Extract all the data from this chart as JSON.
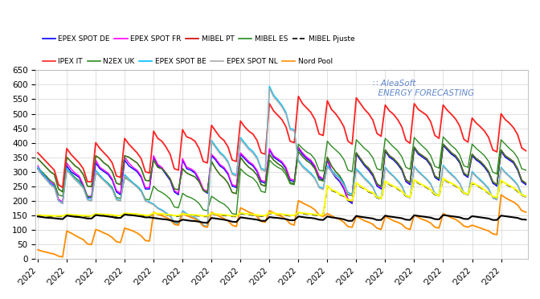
{
  "legend_row1": [
    "EPEX SPOT DE",
    "EPEX SPOT FR",
    "MIBEL PT",
    "MIBEL ES",
    "MIBEL Pjuste"
  ],
  "legend_row2": [
    "IPEX IT",
    "N2EX UK",
    "EPEX SPOT BE",
    "EPEX SPOT NL",
    "Nord Pool"
  ],
  "colors_row1": [
    "#0000FF",
    "#FF00FF",
    "#FF0000",
    "#228B22",
    "#000000"
  ],
  "colors_row2": [
    "#FF0000",
    "#228B22",
    "#00BFFF",
    "#808080",
    "#FFA500"
  ],
  "ls_row1": [
    "-",
    "-",
    "-",
    "-",
    "--"
  ],
  "ls_row2": [
    "-",
    "-",
    "-",
    "-",
    "-"
  ],
  "ylim": [
    0,
    650
  ],
  "yticks": [
    0,
    50,
    100,
    150,
    200,
    250,
    300,
    350,
    400,
    450,
    500,
    550,
    600,
    650
  ],
  "background": "#ffffff",
  "grid_color": "#c8c8c8",
  "n_points": 119,
  "x_tick_every": 7,
  "series": {
    "EPEX_SPOT_DE": [
      310,
      290,
      280,
      260,
      250,
      200,
      190,
      320,
      300,
      290,
      280,
      250,
      210,
      210,
      330,
      310,
      300,
      290,
      270,
      230,
      220,
      340,
      320,
      310,
      300,
      280,
      240,
      240,
      350,
      320,
      310,
      290,
      270,
      230,
      220,
      340,
      310,
      305,
      295,
      270,
      235,
      225,
      355,
      340,
      320,
      310,
      290,
      250,
      245,
      360,
      345,
      330,
      320,
      300,
      265,
      260,
      375,
      350,
      340,
      330,
      310,
      270,
      265,
      380,
      360,
      345,
      335,
      315,
      280,
      270,
      340,
      300,
      280,
      265,
      240,
      200,
      190,
      360,
      340,
      320,
      305,
      285,
      250,
      240,
      370,
      350,
      340,
      325,
      305,
      265,
      255,
      380,
      360,
      350,
      340,
      320,
      280,
      270,
      390,
      375,
      360,
      350,
      330,
      290,
      280,
      355,
      340,
      330,
      315,
      295,
      260,
      250,
      370,
      350,
      340,
      330,
      305,
      265,
      255
    ],
    "EPEX_SPOT_FR": [
      320,
      295,
      285,
      265,
      255,
      205,
      195,
      330,
      310,
      295,
      285,
      255,
      215,
      215,
      340,
      315,
      305,
      295,
      275,
      235,
      225,
      350,
      330,
      315,
      305,
      285,
      245,
      245,
      355,
      325,
      315,
      295,
      275,
      235,
      225,
      345,
      315,
      310,
      300,
      275,
      240,
      230,
      360,
      345,
      325,
      315,
      295,
      255,
      250,
      365,
      350,
      335,
      325,
      305,
      270,
      265,
      380,
      355,
      345,
      335,
      315,
      275,
      270,
      385,
      365,
      350,
      340,
      320,
      285,
      275,
      345,
      305,
      285,
      270,
      245,
      205,
      195,
      365,
      345,
      325,
      310,
      290,
      255,
      245,
      375,
      355,
      345,
      330,
      310,
      270,
      260,
      385,
      365,
      355,
      345,
      325,
      285,
      275,
      395,
      380,
      365,
      355,
      335,
      295,
      285,
      360,
      345,
      335,
      320,
      300,
      265,
      255,
      375,
      355,
      345,
      335,
      310,
      270,
      260
    ],
    "MIBEL_PT": [
      345,
      330,
      315,
      300,
      290,
      240,
      230,
      350,
      335,
      320,
      310,
      290,
      250,
      248,
      355,
      345,
      330,
      320,
      300,
      260,
      255,
      355,
      350,
      340,
      330,
      310,
      270,
      268,
      340,
      315,
      310,
      295,
      275,
      240,
      238,
      310,
      295,
      288,
      282,
      265,
      235,
      228,
      335,
      310,
      290,
      278,
      260,
      228,
      224,
      350,
      330,
      315,
      305,
      288,
      255,
      250,
      360,
      340,
      328,
      318,
      300,
      262,
      258,
      370,
      352,
      338,
      328,
      310,
      272,
      268,
      350,
      320,
      300,
      285,
      260,
      220,
      218,
      365,
      345,
      325,
      312,
      292,
      258,
      248,
      375,
      355,
      345,
      330,
      310,
      272,
      262,
      385,
      365,
      355,
      345,
      325,
      285,
      275,
      395,
      380,
      365,
      355,
      335,
      295,
      285,
      360,
      345,
      335,
      320,
      300,
      265,
      255,
      375,
      355,
      345,
      335,
      310,
      270,
      260
    ],
    "MIBEL_ES": [
      345,
      330,
      315,
      300,
      290,
      240,
      230,
      350,
      335,
      320,
      310,
      290,
      250,
      248,
      355,
      345,
      330,
      320,
      300,
      260,
      255,
      355,
      350,
      340,
      330,
      310,
      270,
      268,
      340,
      315,
      310,
      295,
      275,
      240,
      238,
      310,
      295,
      288,
      282,
      265,
      235,
      228,
      335,
      310,
      290,
      278,
      260,
      228,
      224,
      350,
      330,
      315,
      305,
      288,
      255,
      250,
      360,
      340,
      328,
      318,
      300,
      262,
      258,
      370,
      352,
      338,
      328,
      310,
      272,
      268,
      350,
      320,
      300,
      285,
      260,
      220,
      218,
      365,
      345,
      325,
      312,
      292,
      258,
      248,
      375,
      355,
      345,
      330,
      310,
      272,
      262,
      385,
      365,
      355,
      345,
      325,
      285,
      275,
      395,
      380,
      365,
      355,
      335,
      295,
      285,
      360,
      345,
      335,
      320,
      300,
      265,
      255,
      375,
      355,
      345,
      335,
      310,
      270,
      260
    ],
    "MIBEL_Pjuste": [
      148,
      147,
      146,
      146,
      145,
      145,
      145,
      150,
      149,
      148,
      147,
      146,
      145,
      145,
      152,
      151,
      150,
      149,
      148,
      146,
      146,
      154,
      153,
      152,
      151,
      149,
      147,
      147,
      155,
      153,
      152,
      150,
      149,
      146,
      146,
      152,
      150,
      149,
      148,
      147,
      145,
      145,
      154,
      152,
      150,
      149,
      147,
      145,
      145,
      155,
      153,
      151,
      150,
      148,
      146,
      146,
      156,
      154,
      152,
      151,
      149,
      147,
      147,
      157,
      155,
      153,
      152,
      150,
      148,
      148,
      250,
      235,
      230,
      220,
      215,
      200,
      198,
      260,
      248,
      240,
      230,
      225,
      210,
      205,
      265,
      255,
      248,
      240,
      230,
      215,
      210,
      270,
      260,
      252,
      245,
      235,
      220,
      215,
      275,
      265,
      258,
      250,
      240,
      225,
      220,
      260,
      252,
      245,
      235,
      225,
      212,
      208,
      268,
      258,
      250,
      242,
      232,
      218,
      213
    ],
    "IPEX_IT": [
      365,
      350,
      335,
      320,
      305,
      255,
      245,
      380,
      360,
      345,
      330,
      310,
      265,
      265,
      400,
      380,
      365,
      350,
      330,
      285,
      280,
      415,
      395,
      380,
      365,
      345,
      300,
      295,
      440,
      415,
      405,
      385,
      360,
      310,
      305,
      445,
      420,
      415,
      405,
      380,
      335,
      330,
      460,
      440,
      420,
      408,
      385,
      340,
      335,
      475,
      455,
      440,
      430,
      408,
      365,
      360,
      535,
      510,
      495,
      480,
      455,
      405,
      400,
      560,
      535,
      520,
      505,
      480,
      430,
      425,
      545,
      515,
      500,
      480,
      455,
      405,
      395,
      555,
      535,
      515,
      500,
      478,
      432,
      422,
      530,
      510,
      498,
      480,
      455,
      408,
      398,
      535,
      515,
      505,
      495,
      472,
      425,
      415,
      530,
      512,
      498,
      482,
      458,
      412,
      402,
      485,
      468,
      455,
      440,
      418,
      375,
      368,
      500,
      480,
      468,
      452,
      428,
      382,
      372
    ],
    "N2EX_UK": [
      310,
      300,
      285,
      270,
      260,
      220,
      215,
      305,
      295,
      280,
      268,
      250,
      215,
      212,
      295,
      285,
      272,
      260,
      245,
      210,
      208,
      280,
      270,
      260,
      250,
      235,
      205,
      202,
      250,
      235,
      228,
      218,
      205,
      178,
      175,
      225,
      215,
      210,
      202,
      190,
      168,
      165,
      215,
      205,
      195,
      188,
      175,
      155,
      152,
      310,
      295,
      285,
      278,
      262,
      232,
      228,
      340,
      325,
      315,
      308,
      290,
      258,
      255,
      395,
      380,
      368,
      360,
      342,
      305,
      302,
      405,
      388,
      375,
      362,
      342,
      305,
      300,
      410,
      395,
      380,
      368,
      348,
      310,
      305,
      415,
      400,
      385,
      372,
      352,
      315,
      308,
      418,
      402,
      388,
      375,
      355,
      318,
      312,
      420,
      405,
      390,
      378,
      358,
      320,
      315,
      395,
      380,
      368,
      355,
      335,
      298,
      292,
      410,
      395,
      380,
      368,
      348,
      310,
      305
    ],
    "EPEX_SPOT_BE": [
      315,
      295,
      278,
      260,
      248,
      200,
      192,
      312,
      292,
      275,
      262,
      245,
      205,
      200,
      305,
      288,
      272,
      258,
      242,
      205,
      200,
      290,
      275,
      262,
      250,
      235,
      200,
      195,
      188,
      175,
      168,
      158,
      148,
      125,
      120,
      165,
      155,
      148,
      142,
      132,
      115,
      110,
      408,
      388,
      368,
      355,
      335,
      295,
      288,
      418,
      400,
      382,
      370,
      350,
      312,
      305,
      595,
      565,
      548,
      530,
      505,
      450,
      445,
      340,
      320,
      308,
      295,
      278,
      248,
      242,
      320,
      305,
      290,
      278,
      258,
      228,
      222,
      310,
      295,
      278,
      265,
      248,
      215,
      208,
      315,
      298,
      285,
      270,
      252,
      218,
      212,
      318,
      302,
      288,
      275,
      258,
      225,
      218,
      322,
      305,
      292,
      278,
      260,
      228,
      222,
      300,
      285,
      272,
      258,
      242,
      210,
      205,
      315,
      298,
      285,
      272,
      255,
      222,
      215
    ],
    "EPEX_SPOT_NL": [
      308,
      288,
      272,
      255,
      244,
      198,
      190,
      305,
      288,
      272,
      258,
      242,
      202,
      198,
      298,
      282,
      268,
      254,
      238,
      202,
      198,
      285,
      270,
      258,
      246,
      230,
      198,
      192,
      185,
      172,
      165,
      155,
      145,
      122,
      118,
      162,
      152,
      145,
      140,
      130,
      112,
      108,
      402,
      382,
      362,
      350,
      330,
      290,
      284,
      412,
      394,
      376,
      364,
      344,
      306,
      300,
      588,
      558,
      542,
      524,
      498,
      444,
      440,
      335,
      315,
      302,
      290,
      274,
      244,
      238,
      315,
      300,
      285,
      272,
      252,
      224,
      218,
      305,
      290,
      274,
      260,
      244,
      212,
      205,
      312,
      294,
      282,
      266,
      248,
      215,
      208,
      315,
      298,
      285,
      272,
      255,
      222,
      215,
      318,
      302,
      288,
      275,
      258,
      225,
      218,
      296,
      282,
      268,
      255,
      238,
      208,
      202,
      312,
      295,
      282,
      268,
      252,
      218,
      212
    ],
    "Nord_Pool": [
      30,
      25,
      22,
      18,
      15,
      8,
      5,
      95,
      88,
      80,
      72,
      65,
      50,
      48,
      100,
      95,
      88,
      82,
      72,
      58,
      55,
      105,
      100,
      95,
      88,
      78,
      62,
      60,
      160,
      152,
      148,
      142,
      135,
      118,
      115,
      155,
      148,
      142,
      136,
      128,
      112,
      108,
      160,
      152,
      145,
      138,
      130,
      115,
      110,
      175,
      168,
      160,
      155,
      145,
      128,
      125,
      165,
      158,
      150,
      145,
      135,
      120,
      115,
      200,
      192,
      185,
      178,
      168,
      150,
      145,
      155,
      148,
      140,
      135,
      125,
      110,
      108,
      145,
      138,
      130,
      125,
      118,
      105,
      100,
      145,
      138,
      130,
      125,
      118,
      105,
      100,
      150,
      142,
      135,
      130,
      122,
      108,
      105,
      155,
      148,
      140,
      135,
      125,
      112,
      108,
      115,
      110,
      105,
      100,
      95,
      85,
      82,
      220,
      210,
      202,
      195,
      185,
      165,
      160
    ]
  }
}
